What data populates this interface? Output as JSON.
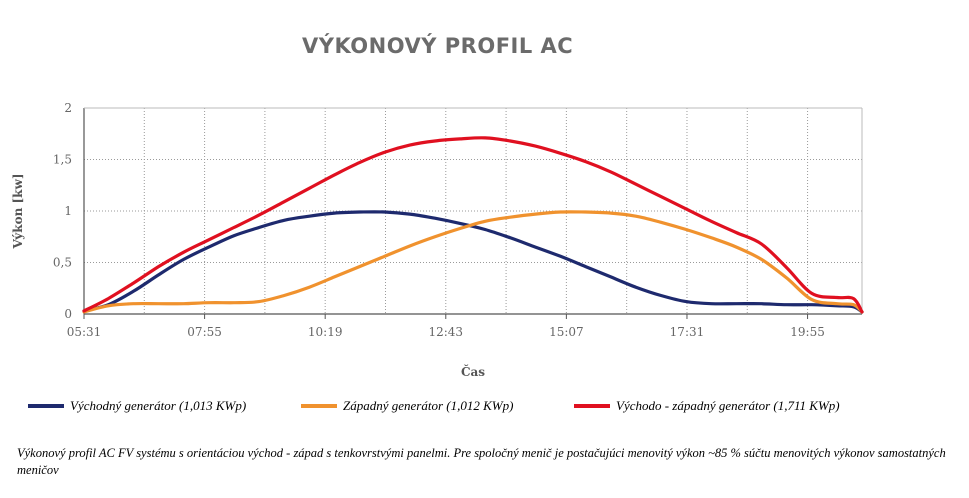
{
  "chart_data": {
    "type": "line",
    "title": "VÝKONOVÝ PROFIL AC",
    "xlabel": "Čas",
    "ylabel": "Výkon [kw]",
    "x_ticks": [
      "05:31",
      "07:55",
      "10:19",
      "12:43",
      "15:07",
      "17:31",
      "19:55"
    ],
    "y_ticks": [
      "0",
      "0,5",
      "1",
      "1,5",
      "2"
    ],
    "ylim": [
      0,
      2
    ],
    "xlim": [
      "05:31",
      "21:00"
    ],
    "grid": true,
    "legend_position": "bottom",
    "x": [
      "05:31",
      "06:00",
      "06:30",
      "07:00",
      "07:30",
      "08:00",
      "08:30",
      "09:00",
      "09:30",
      "10:00",
      "10:30",
      "11:00",
      "11:30",
      "12:00",
      "12:30",
      "13:00",
      "13:30",
      "14:00",
      "14:30",
      "15:00",
      "15:30",
      "16:00",
      "16:30",
      "17:00",
      "17:30",
      "18:00",
      "18:30",
      "19:00",
      "19:30",
      "20:00",
      "20:30",
      "20:50",
      "21:00"
    ],
    "series": [
      {
        "name": "Východný generátor (1,013 KWp)",
        "color": "#1e2a6e",
        "values": [
          0.03,
          0.09,
          0.22,
          0.38,
          0.53,
          0.65,
          0.76,
          0.84,
          0.91,
          0.95,
          0.98,
          0.99,
          0.99,
          0.97,
          0.93,
          0.88,
          0.82,
          0.74,
          0.65,
          0.56,
          0.46,
          0.36,
          0.26,
          0.18,
          0.12,
          0.1,
          0.1,
          0.1,
          0.09,
          0.09,
          0.08,
          0.07,
          0.02
        ]
      },
      {
        "name": "Západný generátor (1,012 KWp)",
        "color": "#f0922e",
        "values": [
          0.02,
          0.08,
          0.1,
          0.1,
          0.1,
          0.11,
          0.11,
          0.12,
          0.18,
          0.26,
          0.36,
          0.46,
          0.56,
          0.66,
          0.75,
          0.83,
          0.9,
          0.94,
          0.97,
          0.99,
          0.99,
          0.98,
          0.95,
          0.89,
          0.82,
          0.74,
          0.65,
          0.53,
          0.35,
          0.14,
          0.1,
          0.09,
          0.02
        ]
      },
      {
        "name": "Východo - západný generátor (1,711 KWp)",
        "color": "#e01020",
        "values": [
          0.03,
          0.15,
          0.3,
          0.46,
          0.6,
          0.72,
          0.84,
          0.96,
          1.09,
          1.22,
          1.35,
          1.47,
          1.57,
          1.64,
          1.68,
          1.7,
          1.71,
          1.68,
          1.63,
          1.56,
          1.48,
          1.38,
          1.26,
          1.14,
          1.02,
          0.9,
          0.79,
          0.68,
          0.45,
          0.2,
          0.16,
          0.15,
          0.02
        ]
      }
    ]
  },
  "caption": "Výkonový profil AC FV systému s orientáciou východ - západ s tenkovrstvými panelmi. Pre spoločný menič je postačujúci menovitý výkon ~85 % súčtu menovitých výkonov samostatných meničov"
}
